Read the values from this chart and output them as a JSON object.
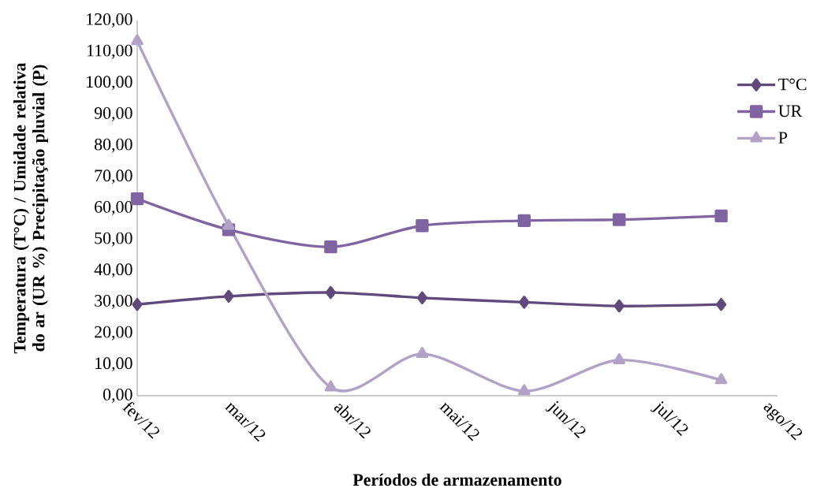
{
  "chart_data": {
    "type": "line",
    "xlabel": "Períodos de armazenamento",
    "ylabel": "Temperatura (T°C) / Umidade relativa do ar (UR %) Precipitação pluvial (P)",
    "x": [
      "2012-02-01",
      "2012-02-27",
      "2012-03-27",
      "2012-04-22",
      "2012-05-21",
      "2012-06-17",
      "2012-07-16"
    ],
    "series": [
      {
        "name": "T°C",
        "color": "#604a7b",
        "marker": "diamond",
        "values": [
          29.2,
          31.8,
          33.0,
          31.3,
          29.9,
          28.7,
          29.2
        ]
      },
      {
        "name": "UR",
        "color": "#8064a2",
        "marker": "square",
        "values": [
          63.0,
          53.1,
          47.6,
          54.4,
          56.0,
          56.3,
          57.5
        ]
      },
      {
        "name": "P",
        "color": "#b3a2c7",
        "marker": "triangle",
        "values": [
          113.4,
          54.4,
          2.7,
          13.4,
          1.5,
          11.4,
          5.0
        ]
      }
    ],
    "xlim": [
      "2012-02-01",
      "2012-08-01"
    ],
    "xticks": [
      {
        "value": "2012-02-01",
        "label": "fev/12"
      },
      {
        "value": "2012-03-01",
        "label": "mar/12"
      },
      {
        "value": "2012-04-01",
        "label": "abr/12"
      },
      {
        "value": "2012-05-01",
        "label": "mai/12"
      },
      {
        "value": "2012-06-01",
        "label": "jun/12"
      },
      {
        "value": "2012-07-01",
        "label": "jul/12"
      },
      {
        "value": "2012-08-01",
        "label": "ago/12"
      }
    ],
    "ylim": [
      0,
      120
    ],
    "yticks": [
      {
        "value": 0,
        "label": "0,00"
      },
      {
        "value": 10,
        "label": "10,00"
      },
      {
        "value": 20,
        "label": "20,00"
      },
      {
        "value": 30,
        "label": "30,00"
      },
      {
        "value": 40,
        "label": "40,00"
      },
      {
        "value": 50,
        "label": "50,00"
      },
      {
        "value": 60,
        "label": "60,00"
      },
      {
        "value": 70,
        "label": "70,00"
      },
      {
        "value": 80,
        "label": "80,00"
      },
      {
        "value": 90,
        "label": "90,00"
      },
      {
        "value": 100,
        "label": "100,00"
      },
      {
        "value": 110,
        "label": "110,00"
      },
      {
        "value": 120,
        "label": "120,00"
      }
    ],
    "legend": "right"
  }
}
